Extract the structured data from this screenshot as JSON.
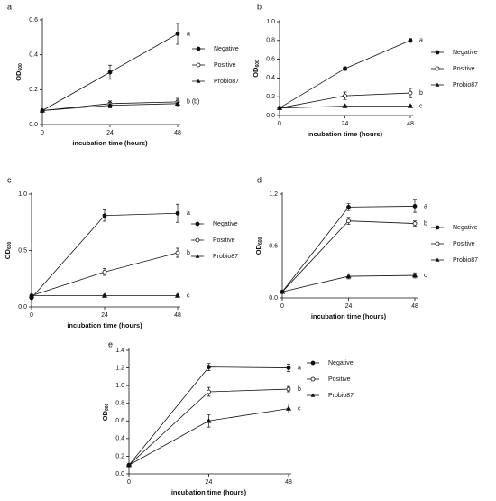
{
  "chart_data": [
    {
      "type": "line",
      "label": "a",
      "xlabel": "incubation time (hours)",
      "ylabel": "OD",
      "ylabel_sub": "600",
      "x": [
        0,
        24,
        48
      ],
      "xlim": [
        0,
        48
      ],
      "xticks": [
        0,
        24,
        48
      ],
      "ylim": [
        0,
        0.6
      ],
      "yticks": [
        {
          "value": 0,
          "label": "0.0"
        },
        0.2,
        0.4,
        0.6
      ],
      "series": [
        {
          "name": "Negative",
          "color": "#111111",
          "marker": "filled-circle",
          "values": [
            0.08,
            0.3,
            0.52
          ],
          "errors": [
            0.005,
            0.04,
            0.06
          ],
          "letter": "a"
        },
        {
          "name": "Positive",
          "color": "#111111",
          "marker": "open-circle",
          "values": [
            0.08,
            0.12,
            0.13
          ],
          "errors": [
            0.005,
            0.015,
            0.02
          ],
          "letter": "b (b)"
        },
        {
          "name": "Probio87",
          "color": "#111111",
          "marker": "triangle",
          "values": [
            0.08,
            0.11,
            0.12
          ],
          "errors": [
            0.005,
            0.015,
            0.02
          ]
        }
      ]
    },
    {
      "type": "line",
      "label": "b",
      "xlabel": "incubation time (hours)",
      "ylabel": "OD",
      "ylabel_sub": "600",
      "x": [
        0,
        24,
        48
      ],
      "xlim": [
        0,
        48
      ],
      "xticks": [
        0,
        24,
        48
      ],
      "ylim": [
        0,
        1.0
      ],
      "yticks": [
        {
          "value": 0,
          "label": "0.0"
        },
        0.2,
        0.4,
        0.6,
        0.8,
        {
          "value": 1.0,
          "label": "1.0"
        }
      ],
      "series": [
        {
          "name": "Negative",
          "color": "#111111",
          "marker": "filled-circle",
          "values": [
            0.08,
            0.5,
            0.8
          ],
          "errors": [
            0.005,
            0.02,
            0.02
          ],
          "letter": "a"
        },
        {
          "name": "Positive",
          "color": "#111111",
          "marker": "open-circle",
          "values": [
            0.08,
            0.21,
            0.24
          ],
          "errors": [
            0.005,
            0.04,
            0.05
          ],
          "letter": "b"
        },
        {
          "name": "Probio87",
          "color": "#111111",
          "marker": "triangle",
          "values": [
            0.08,
            0.1,
            0.1
          ],
          "errors": [
            0.005,
            0.01,
            0.01
          ],
          "letter": "c"
        }
      ]
    },
    {
      "type": "line",
      "label": "c",
      "xlabel": "incubation time (hours)",
      "ylabel": "OD",
      "ylabel_sub": "600",
      "x": [
        0,
        24,
        48
      ],
      "xlim": [
        0,
        48
      ],
      "xticks": [
        0,
        24,
        48
      ],
      "ylim": [
        0,
        1.0
      ],
      "yticks": [
        {
          "value": 0,
          "label": "0.0"
        },
        0.5,
        {
          "value": 1.0,
          "label": "1.0"
        }
      ],
      "series": [
        {
          "name": "Negative",
          "color": "#111111",
          "marker": "filled-circle",
          "values": [
            0.08,
            0.81,
            0.83
          ],
          "errors": [
            0.005,
            0.05,
            0.08
          ],
          "letter": "a"
        },
        {
          "name": "Positive",
          "color": "#111111",
          "marker": "open-circle",
          "values": [
            0.1,
            0.31,
            0.48
          ],
          "errors": [
            0.005,
            0.03,
            0.04
          ],
          "letter": "b"
        },
        {
          "name": "Probio87",
          "color": "#111111",
          "marker": "triangle",
          "values": [
            0.1,
            0.1,
            0.1
          ],
          "errors": [
            0.005,
            0.01,
            0.01
          ],
          "letter": "c"
        }
      ]
    },
    {
      "type": "line",
      "label": "d",
      "xlabel": "incubation time (hours)",
      "ylabel": "OD",
      "ylabel_sub": "600",
      "x": [
        0,
        24,
        48
      ],
      "xlim": [
        0,
        48
      ],
      "xticks": [
        0,
        24,
        48
      ],
      "ylim": [
        0,
        1.2
      ],
      "yticks": [
        {
          "value": 0,
          "label": "0.0"
        },
        0.6,
        1.2
      ],
      "series": [
        {
          "name": "Negative",
          "color": "#111111",
          "marker": "filled-circle",
          "values": [
            0.07,
            1.05,
            1.06
          ],
          "errors": [
            0.005,
            0.04,
            0.07
          ],
          "letter": "a"
        },
        {
          "name": "Positive",
          "color": "#111111",
          "marker": "open-circle",
          "values": [
            0.07,
            0.89,
            0.86
          ],
          "errors": [
            0.005,
            0.04,
            0.03
          ],
          "letter": "b"
        },
        {
          "name": "Probio87",
          "color": "#111111",
          "marker": "triangle",
          "values": [
            0.07,
            0.25,
            0.26
          ],
          "errors": [
            0.005,
            0.03,
            0.03
          ],
          "letter": "c"
        }
      ]
    },
    {
      "type": "line",
      "label": "e",
      "xlabel": "incubation time (hours)",
      "ylabel": "OD",
      "ylabel_sub": "600",
      "x": [
        0,
        24,
        48
      ],
      "xlim": [
        0,
        48
      ],
      "xticks": [
        0,
        24,
        48
      ],
      "ylim": [
        0,
        1.4
      ],
      "yticks": [
        {
          "value": 0,
          "label": "0.0"
        },
        0.2,
        0.4,
        0.6,
        0.8,
        {
          "value": 1.0,
          "label": "1.0"
        },
        1.2,
        1.4
      ],
      "series": [
        {
          "name": "Negative",
          "color": "#111111",
          "marker": "filled-circle",
          "values": [
            0.1,
            1.21,
            1.2
          ],
          "errors": [
            0.01,
            0.04,
            0.04
          ],
          "letter": "a"
        },
        {
          "name": "Positive",
          "color": "#111111",
          "marker": "open-circle",
          "values": [
            0.1,
            0.93,
            0.96
          ],
          "errors": [
            0.01,
            0.05,
            0.03
          ],
          "letter": "b"
        },
        {
          "name": "Probio87",
          "color": "#111111",
          "marker": "triangle",
          "values": [
            0.1,
            0.6,
            0.74
          ],
          "errors": [
            0.01,
            0.07,
            0.05
          ],
          "letter": "c"
        }
      ]
    }
  ]
}
